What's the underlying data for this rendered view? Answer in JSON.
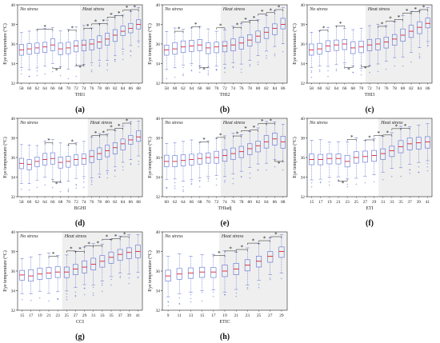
{
  "colors": {
    "box": "#5b6fd1",
    "median": "#e0202a",
    "outlier": "#3a4fc4",
    "heat_bg": "#efefef",
    "axis": "#222222"
  },
  "chart_data": [
    {
      "type": "box",
      "panel": "(a)",
      "xlabel": "THI1",
      "ylabel": "Eye temperature (°C)",
      "ylim": [
        32,
        40
      ],
      "yticks": [
        32,
        34,
        36,
        38,
        40
      ],
      "no_stress_label": "No stress",
      "heat_stress_label": "Heat stress",
      "heat_start_index": 8,
      "categories": [
        "58",
        "60",
        "62",
        "64",
        "66",
        "68",
        "70",
        "72",
        "74",
        "76",
        "78",
        "80",
        "82",
        "84",
        "86",
        "88"
      ],
      "medians": [
        35.4,
        35.5,
        35.6,
        35.7,
        35.9,
        35.5,
        35.6,
        35.8,
        35.9,
        36.0,
        36.2,
        36.5,
        36.9,
        37.3,
        37.6,
        38.0
      ],
      "significance": [
        {
          "from": "62",
          "to": "66",
          "pos": "above"
        },
        {
          "from": "66",
          "to": "68",
          "pos": "below"
        },
        {
          "from": "70",
          "to": "72",
          "pos": "above"
        },
        {
          "from": "72",
          "to": "74",
          "pos": "below"
        },
        {
          "from": "74",
          "to": "76",
          "pos": "above"
        },
        {
          "from": "76",
          "to": "78",
          "pos": "above"
        },
        {
          "from": "78",
          "to": "80",
          "pos": "above"
        },
        {
          "from": "80",
          "to": "82",
          "pos": "above"
        },
        {
          "from": "82",
          "to": "84",
          "pos": "above"
        },
        {
          "from": "84",
          "to": "86",
          "pos": "above"
        },
        {
          "from": "86",
          "to": "88",
          "pos": "above"
        }
      ]
    },
    {
      "type": "box",
      "panel": "(b)",
      "xlabel": "THI2",
      "ylabel": "Eye temperature (°C)",
      "ylim": [
        32,
        40
      ],
      "yticks": [
        32,
        34,
        36,
        38,
        40
      ],
      "no_stress_label": "No stress",
      "heat_stress_label": "Heat stress",
      "heat_start_index": 7,
      "categories": [
        "58",
        "60",
        "62",
        "64",
        "66",
        "68",
        "70",
        "72",
        "74",
        "76",
        "78",
        "80",
        "82",
        "84",
        "86"
      ],
      "medians": [
        35.4,
        35.5,
        35.7,
        35.8,
        35.9,
        35.6,
        35.7,
        35.8,
        35.9,
        36.1,
        36.4,
        36.8,
        37.2,
        37.6,
        38.0
      ],
      "significance": [
        {
          "from": "60",
          "to": "62",
          "pos": "above"
        },
        {
          "from": "64",
          "to": "66",
          "pos": "above"
        },
        {
          "from": "66",
          "to": "68",
          "pos": "below"
        },
        {
          "from": "70",
          "to": "72",
          "pos": "above"
        },
        {
          "from": "74",
          "to": "76",
          "pos": "above"
        },
        {
          "from": "76",
          "to": "78",
          "pos": "above"
        },
        {
          "from": "78",
          "to": "80",
          "pos": "above"
        },
        {
          "from": "80",
          "to": "82",
          "pos": "above"
        },
        {
          "from": "82",
          "to": "84",
          "pos": "above"
        },
        {
          "from": "84",
          "to": "86",
          "pos": "above"
        }
      ]
    },
    {
      "type": "box",
      "panel": "(c)",
      "xlabel": "THI3",
      "ylabel": "Eye temperature (°C)",
      "ylim": [
        32,
        40
      ],
      "yticks": [
        32,
        34,
        36,
        38,
        40
      ],
      "no_stress_label": "No stress",
      "heat_stress_label": "Heat stress",
      "heat_start_index": 7,
      "categories": [
        "58",
        "60",
        "62",
        "64",
        "66",
        "68",
        "70",
        "72",
        "74",
        "76",
        "78",
        "80",
        "82",
        "84",
        "86"
      ],
      "medians": [
        35.4,
        35.5,
        35.8,
        35.9,
        36.0,
        35.6,
        35.7,
        35.9,
        36.0,
        36.2,
        36.5,
        36.9,
        37.3,
        37.7,
        38.1
      ],
      "significance": [
        {
          "from": "60",
          "to": "62",
          "pos": "above"
        },
        {
          "from": "64",
          "to": "66",
          "pos": "above"
        },
        {
          "from": "66",
          "to": "68",
          "pos": "below"
        },
        {
          "from": "70",
          "to": "72",
          "pos": "below"
        },
        {
          "from": "74",
          "to": "76",
          "pos": "above"
        },
        {
          "from": "76",
          "to": "78",
          "pos": "above"
        },
        {
          "from": "78",
          "to": "80",
          "pos": "above"
        },
        {
          "from": "80",
          "to": "82",
          "pos": "above"
        },
        {
          "from": "82",
          "to": "84",
          "pos": "above"
        },
        {
          "from": "84",
          "to": "86",
          "pos": "above"
        }
      ]
    },
    {
      "type": "box",
      "panel": "(d)",
      "xlabel": "BGHI",
      "ylabel": "Eye temperature (°C)",
      "ylim": [
        32,
        40
      ],
      "yticks": [
        32,
        34,
        36,
        38,
        40
      ],
      "no_stress_label": "No stress",
      "heat_stress_label": "Heat stress",
      "heat_start_index": 9,
      "categories": [
        "58",
        "60",
        "62",
        "64",
        "66",
        "68",
        "70",
        "72",
        "74",
        "76",
        "78",
        "80",
        "82",
        "84",
        "86",
        "88"
      ],
      "medians": [
        35.4,
        35.3,
        35.6,
        35.8,
        35.9,
        35.5,
        35.6,
        35.8,
        35.9,
        36.1,
        36.4,
        36.7,
        37.0,
        37.4,
        37.8,
        38.1
      ],
      "significance": [
        {
          "from": "64",
          "to": "66",
          "pos": "above"
        },
        {
          "from": "66",
          "to": "68",
          "pos": "below"
        },
        {
          "from": "70",
          "to": "72",
          "pos": "above"
        },
        {
          "from": "76",
          "to": "78",
          "pos": "above"
        },
        {
          "from": "78",
          "to": "80",
          "pos": "above"
        },
        {
          "from": "80",
          "to": "82",
          "pos": "above"
        },
        {
          "from": "82",
          "to": "84",
          "pos": "above"
        },
        {
          "from": "84",
          "to": "86",
          "pos": "above"
        }
      ]
    },
    {
      "type": "box",
      "panel": "(e)",
      "xlabel": "THIadj",
      "ylabel": "Eye temperature (°C)",
      "ylim": [
        32,
        40
      ],
      "yticks": [
        32,
        34,
        36,
        38,
        40
      ],
      "no_stress_label": "No stress",
      "heat_stress_label": "Heat stress",
      "heat_start_index": 7,
      "categories": [
        "60",
        "62",
        "64",
        "66",
        "68",
        "70",
        "72",
        "74",
        "76",
        "78",
        "80",
        "82",
        "84",
        "86",
        "88"
      ],
      "medians": [
        35.6,
        35.6,
        35.7,
        35.8,
        35.9,
        36.0,
        36.0,
        36.2,
        36.4,
        36.6,
        36.9,
        37.2,
        37.6,
        37.9,
        37.6
      ],
      "significance": [
        {
          "from": "68",
          "to": "70",
          "pos": "above"
        },
        {
          "from": "72",
          "to": "74",
          "pos": "above"
        },
        {
          "from": "76",
          "to": "78",
          "pos": "above"
        },
        {
          "from": "78",
          "to": "80",
          "pos": "above"
        },
        {
          "from": "80",
          "to": "82",
          "pos": "above"
        },
        {
          "from": "82",
          "to": "84",
          "pos": "above"
        },
        {
          "from": "84",
          "to": "86",
          "pos": "above"
        },
        {
          "from": "86",
          "to": "88",
          "pos": "below"
        }
      ]
    },
    {
      "type": "box",
      "panel": "(f)",
      "xlabel": "ETI",
      "ylabel": "Eye temperature (°C)",
      "ylim": [
        32,
        40
      ],
      "yticks": [
        32,
        34,
        36,
        38,
        40
      ],
      "no_stress_label": "No stress",
      "heat_stress_label": "Heat stress",
      "heat_start_index": 8,
      "categories": [
        "15",
        "17",
        "19",
        "21",
        "23",
        "25",
        "27",
        "29",
        "31",
        "33",
        "35",
        "37",
        "39",
        "41"
      ],
      "medians": [
        35.8,
        35.8,
        35.9,
        35.9,
        35.6,
        36.0,
        36.1,
        36.2,
        36.4,
        36.7,
        37.1,
        37.4,
        37.5,
        37.6
      ],
      "significance": [
        {
          "from": "21",
          "to": "23",
          "pos": "below"
        },
        {
          "from": "23",
          "to": "25",
          "pos": "above"
        },
        {
          "from": "27",
          "to": "29",
          "pos": "above"
        },
        {
          "from": "29",
          "to": "31",
          "pos": "above"
        },
        {
          "from": "31",
          "to": "33",
          "pos": "above"
        },
        {
          "from": "33",
          "to": "35",
          "pos": "above"
        },
        {
          "from": "35",
          "to": "37",
          "pos": "above"
        }
      ]
    },
    {
      "type": "box",
      "panel": "(g)",
      "xlabel": "CCI",
      "ylabel": "Eye temperature (°C)",
      "ylim": [
        32,
        40
      ],
      "yticks": [
        32,
        34,
        36,
        38,
        40
      ],
      "no_stress_label": "No stress",
      "heat_stress_label": "Heat stress",
      "heat_start_index": 5,
      "categories": [
        "15",
        "17",
        "19",
        "21",
        "23",
        "25",
        "27",
        "29",
        "31",
        "33",
        "35",
        "37",
        "39",
        "41"
      ],
      "medians": [
        35.6,
        35.5,
        35.7,
        35.8,
        35.9,
        35.9,
        36.2,
        36.4,
        36.7,
        37.0,
        37.4,
        37.7,
        37.9,
        38.0
      ],
      "significance": [
        {
          "from": "21",
          "to": "23",
          "pos": "above"
        },
        {
          "from": "25",
          "to": "27",
          "pos": "above"
        },
        {
          "from": "27",
          "to": "29",
          "pos": "above"
        },
        {
          "from": "29",
          "to": "31",
          "pos": "above"
        },
        {
          "from": "31",
          "to": "33",
          "pos": "above"
        },
        {
          "from": "33",
          "to": "35",
          "pos": "above"
        },
        {
          "from": "35",
          "to": "37",
          "pos": "above"
        },
        {
          "from": "37",
          "to": "39",
          "pos": "above"
        }
      ]
    },
    {
      "type": "box",
      "panel": "(h)",
      "xlabel": "ETIC",
      "ylabel": "Eye temperature (°C)",
      "ylim": [
        32,
        40
      ],
      "yticks": [
        32,
        34,
        36,
        38,
        40
      ],
      "no_stress_label": "No stress",
      "heat_stress_label": "Heat stress",
      "heat_start_index": 5,
      "categories": [
        "9",
        "11",
        "13",
        "15",
        "17",
        "19",
        "21",
        "23",
        "25",
        "27",
        "29"
      ],
      "medians": [
        35.5,
        35.7,
        35.8,
        35.9,
        35.9,
        36.0,
        36.2,
        36.6,
        37.0,
        37.5,
        38.0
      ],
      "significance": [
        {
          "from": "17",
          "to": "19",
          "pos": "above"
        },
        {
          "from": "19",
          "to": "21",
          "pos": "above"
        },
        {
          "from": "21",
          "to": "23",
          "pos": "above"
        },
        {
          "from": "23",
          "to": "25",
          "pos": "above"
        },
        {
          "from": "25",
          "to": "27",
          "pos": "above"
        },
        {
          "from": "27",
          "to": "29",
          "pos": "above"
        }
      ]
    }
  ]
}
